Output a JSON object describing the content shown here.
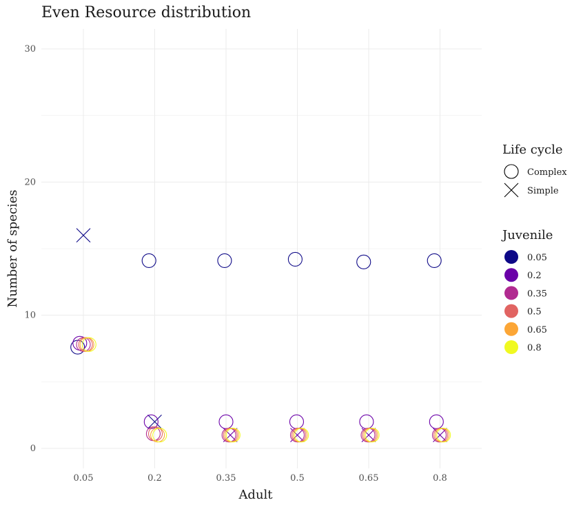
{
  "chart_data": {
    "type": "scatter",
    "title": "Even Resource distribution",
    "xlabel": "Adult",
    "ylabel": "Number of species",
    "categories": [
      "0.05",
      "0.2",
      "0.35",
      "0.5",
      "0.65",
      "0.8"
    ],
    "ylim": [
      -1.5,
      31.5
    ],
    "yticks": [
      0,
      10,
      20,
      30
    ],
    "grid": true,
    "legend_position": "right",
    "legends": {
      "shape": {
        "title": "Life cycle",
        "entries": [
          {
            "label": "Complex",
            "shape": "circle"
          },
          {
            "label": "Simple",
            "shape": "cross"
          }
        ]
      },
      "color": {
        "title": "Juvenile",
        "entries": [
          {
            "label": "0.05",
            "color": "#0d0887"
          },
          {
            "label": "0.2",
            "color": "#6a00a8"
          },
          {
            "label": "0.35",
            "color": "#b12a90"
          },
          {
            "label": "0.5",
            "color": "#e16462"
          },
          {
            "label": "0.65",
            "color": "#fca636"
          },
          {
            "label": "0.8",
            "color": "#f0f921"
          }
        ]
      }
    },
    "points": [
      {
        "adult": "0.05",
        "juvenile": "0.05",
        "life_cycle": "Simple",
        "species": 16,
        "jitter": 0.0
      },
      {
        "adult": "0.05",
        "juvenile": "0.05",
        "life_cycle": "Complex",
        "species": 7.6,
        "jitter": -0.08
      },
      {
        "adult": "0.05",
        "juvenile": "0.2",
        "life_cycle": "Complex",
        "species": 7.9,
        "jitter": -0.05
      },
      {
        "adult": "0.05",
        "juvenile": "0.35",
        "life_cycle": "Complex",
        "species": 7.8,
        "jitter": 0.0
      },
      {
        "adult": "0.05",
        "juvenile": "0.5",
        "life_cycle": "Complex",
        "species": 7.8,
        "jitter": 0.03
      },
      {
        "adult": "0.05",
        "juvenile": "0.65",
        "life_cycle": "Complex",
        "species": 7.8,
        "jitter": 0.05
      },
      {
        "adult": "0.05",
        "juvenile": "0.8",
        "life_cycle": "Complex",
        "species": 7.8,
        "jitter": 0.08
      },
      {
        "adult": "0.2",
        "juvenile": "0.05",
        "life_cycle": "Complex",
        "species": 14.1,
        "jitter": -0.08
      },
      {
        "adult": "0.2",
        "juvenile": "0.05",
        "life_cycle": "Simple",
        "species": 2,
        "jitter": 0.0
      },
      {
        "adult": "0.2",
        "juvenile": "0.2",
        "life_cycle": "Complex",
        "species": 2,
        "jitter": -0.05
      },
      {
        "adult": "0.2",
        "juvenile": "0.35",
        "life_cycle": "Complex",
        "species": 1.1,
        "jitter": -0.02
      },
      {
        "adult": "0.2",
        "juvenile": "0.5",
        "life_cycle": "Complex",
        "species": 1.1,
        "jitter": 0.01
      },
      {
        "adult": "0.2",
        "juvenile": "0.65",
        "life_cycle": "Complex",
        "species": 1.0,
        "jitter": 0.04
      },
      {
        "adult": "0.2",
        "juvenile": "0.8",
        "life_cycle": "Complex",
        "species": 1.0,
        "jitter": 0.07
      },
      {
        "adult": "0.35",
        "juvenile": "0.05",
        "life_cycle": "Complex",
        "species": 14.1,
        "jitter": -0.02
      },
      {
        "adult": "0.35",
        "juvenile": "0.2",
        "life_cycle": "Complex",
        "species": 2,
        "jitter": 0.0
      },
      {
        "adult": "0.35",
        "juvenile": "0.2",
        "life_cycle": "Simple",
        "species": 1,
        "jitter": 0.06
      },
      {
        "adult": "0.35",
        "juvenile": "0.35",
        "life_cycle": "Complex",
        "species": 1.0,
        "jitter": 0.04
      },
      {
        "adult": "0.35",
        "juvenile": "0.5",
        "life_cycle": "Complex",
        "species": 1.0,
        "jitter": 0.06
      },
      {
        "adult": "0.35",
        "juvenile": "0.65",
        "life_cycle": "Complex",
        "species": 1.0,
        "jitter": 0.08
      },
      {
        "adult": "0.35",
        "juvenile": "0.8",
        "life_cycle": "Complex",
        "species": 1.0,
        "jitter": 0.1
      },
      {
        "adult": "0.5",
        "juvenile": "0.05",
        "life_cycle": "Complex",
        "species": 14.2,
        "jitter": -0.03
      },
      {
        "adult": "0.5",
        "juvenile": "0.2",
        "life_cycle": "Complex",
        "species": 2,
        "jitter": -0.01
      },
      {
        "adult": "0.5",
        "juvenile": "0.2",
        "life_cycle": "Simple",
        "species": 1,
        "jitter": 0.0
      },
      {
        "adult": "0.5",
        "juvenile": "0.35",
        "life_cycle": "Complex",
        "species": 1.0,
        "jitter": 0.0
      },
      {
        "adult": "0.5",
        "juvenile": "0.5",
        "life_cycle": "Complex",
        "species": 1.0,
        "jitter": 0.02
      },
      {
        "adult": "0.5",
        "juvenile": "0.65",
        "life_cycle": "Complex",
        "species": 1.0,
        "jitter": 0.04
      },
      {
        "adult": "0.5",
        "juvenile": "0.8",
        "life_cycle": "Complex",
        "species": 1.0,
        "jitter": 0.06
      },
      {
        "adult": "0.65",
        "juvenile": "0.05",
        "life_cycle": "Complex",
        "species": 14.0,
        "jitter": -0.07
      },
      {
        "adult": "0.65",
        "juvenile": "0.2",
        "life_cycle": "Complex",
        "species": 2,
        "jitter": -0.03
      },
      {
        "adult": "0.65",
        "juvenile": "0.2",
        "life_cycle": "Simple",
        "species": 1,
        "jitter": 0.0
      },
      {
        "adult": "0.65",
        "juvenile": "0.35",
        "life_cycle": "Complex",
        "species": 1.0,
        "jitter": -0.01
      },
      {
        "adult": "0.65",
        "juvenile": "0.5",
        "life_cycle": "Complex",
        "species": 1.0,
        "jitter": 0.01
      },
      {
        "adult": "0.65",
        "juvenile": "0.65",
        "life_cycle": "Complex",
        "species": 1.0,
        "jitter": 0.03
      },
      {
        "adult": "0.65",
        "juvenile": "0.8",
        "life_cycle": "Complex",
        "species": 1.0,
        "jitter": 0.05
      },
      {
        "adult": "0.8",
        "juvenile": "0.05",
        "life_cycle": "Complex",
        "species": 14.1,
        "jitter": -0.08
      },
      {
        "adult": "0.8",
        "juvenile": "0.2",
        "life_cycle": "Complex",
        "species": 2,
        "jitter": -0.05
      },
      {
        "adult": "0.8",
        "juvenile": "0.2",
        "life_cycle": "Simple",
        "species": 1,
        "jitter": 0.0
      },
      {
        "adult": "0.8",
        "juvenile": "0.35",
        "life_cycle": "Complex",
        "species": 1.0,
        "jitter": -0.01
      },
      {
        "adult": "0.8",
        "juvenile": "0.5",
        "life_cycle": "Complex",
        "species": 1.0,
        "jitter": 0.01
      },
      {
        "adult": "0.8",
        "juvenile": "0.65",
        "life_cycle": "Complex",
        "species": 1.0,
        "jitter": 0.03
      },
      {
        "adult": "0.8",
        "juvenile": "0.8",
        "life_cycle": "Complex",
        "species": 1.0,
        "jitter": 0.05
      }
    ]
  }
}
